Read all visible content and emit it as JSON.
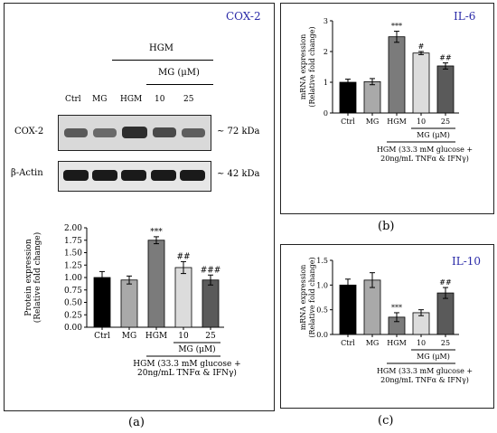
{
  "panel_a": {
    "title": "COX-2",
    "label": "(a)",
    "hgm_header": "HGM",
    "mg_header": "MG (μM)",
    "lane_labels": [
      "Ctrl",
      "MG",
      "HGM",
      "10",
      "25"
    ],
    "blots": [
      {
        "name": "COX-2",
        "size": "~ 72 kDa"
      },
      {
        "name": "β-Actin",
        "size": "~ 42 kDa"
      }
    ]
  },
  "panel_b": {
    "title": "IL-6",
    "label": "(b)"
  },
  "panel_c": {
    "title": "IL-10",
    "label": "(c)"
  },
  "chart_data": [
    {
      "id": "protein-cox2",
      "type": "bar",
      "categories": [
        "Ctrl",
        "MG",
        "HGM",
        "10",
        "25"
      ],
      "values": [
        1.0,
        0.95,
        1.75,
        1.2,
        0.95
      ],
      "errors": [
        0.12,
        0.08,
        0.07,
        0.12,
        0.1
      ],
      "annotations": [
        "",
        "",
        "***",
        "##",
        "###"
      ],
      "colors": [
        "#000000",
        "#a9a9a9",
        "#7b7b7b",
        "#dcdcdc",
        "#5a5a5a"
      ],
      "ylabel_lines": [
        "Protein expression",
        "(Relative fold change)"
      ],
      "yticks": [
        "0.00",
        "0.25",
        "0.50",
        "0.75",
        "1.00",
        "1.25",
        "1.50",
        "1.75",
        "2.00"
      ],
      "ylim": [
        0,
        2.0
      ],
      "mg_label": "MG (μM)",
      "hgm_lines": [
        "HGM (33.3 mM glucose +",
        "20ng/mL TNFα & IFNγ)"
      ]
    },
    {
      "id": "mrna-il6",
      "type": "bar",
      "categories": [
        "Ctrl",
        "MG",
        "HGM",
        "10",
        "25"
      ],
      "values": [
        1.0,
        1.02,
        2.48,
        1.95,
        1.53
      ],
      "errors": [
        0.1,
        0.1,
        0.18,
        0.05,
        0.1
      ],
      "annotations": [
        "",
        "",
        "***",
        "#",
        "##"
      ],
      "colors": [
        "#000000",
        "#a9a9a9",
        "#7b7b7b",
        "#dcdcdc",
        "#5a5a5a"
      ],
      "ylabel_lines": [
        "mRNA expression",
        "(Relative fold change)"
      ],
      "yticks": [
        "0",
        "1",
        "2",
        "3"
      ],
      "ylim": [
        0,
        3
      ],
      "mg_label": "MG (μM)",
      "hgm_lines": [
        "HGM (33.3 mM glucose +",
        "20ng/mL TNFα & IFNγ)"
      ]
    },
    {
      "id": "mrna-il10",
      "type": "bar",
      "categories": [
        "Ctrl",
        "MG",
        "HGM",
        "10",
        "25"
      ],
      "values": [
        1.0,
        1.1,
        0.35,
        0.44,
        0.84
      ],
      "errors": [
        0.12,
        0.15,
        0.09,
        0.06,
        0.11
      ],
      "annotations": [
        "",
        "",
        "***",
        "",
        "##"
      ],
      "colors": [
        "#000000",
        "#a9a9a9",
        "#7b7b7b",
        "#dcdcdc",
        "#5a5a5a"
      ],
      "ylabel_lines": [
        "mRNA expression",
        "(Relative fold change)"
      ],
      "yticks": [
        "0.0",
        "0.5",
        "1.0",
        "1.5"
      ],
      "ylim": [
        0,
        1.5
      ],
      "mg_label": "MG (μM)",
      "hgm_lines": [
        "HGM (33.3 mM glucose +",
        "20ng/mL TNFα & IFNγ)"
      ]
    }
  ]
}
